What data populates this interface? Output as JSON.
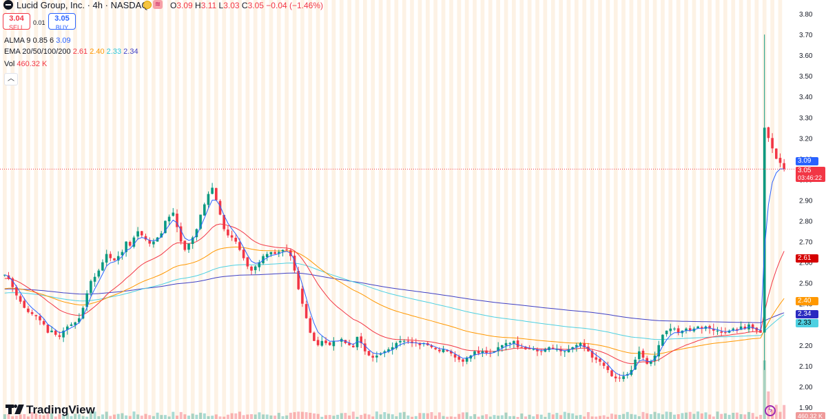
{
  "header": {
    "title": "Lucid Group, Inc. · 4h · NASDAQ",
    "ohlc": {
      "o_label": "O",
      "o": "3.09",
      "h_label": "H",
      "h": "3.11",
      "l_label": "L",
      "l": "3.03",
      "c_label": "C",
      "c": "3.05",
      "change": "−0.04 (−1.46%)"
    },
    "sell": {
      "price": "3.04",
      "label": "SELL"
    },
    "buy": {
      "price": "3.05",
      "label": "BUY"
    },
    "spread": "0.01",
    "indicators": {
      "alma": {
        "name": "ALMA 9 0.85 6",
        "value": "3.09"
      },
      "ema": {
        "name": "EMA 20/50/100/200",
        "v20": "2.61",
        "v50": "2.40",
        "v100": "2.33",
        "v200": "2.34"
      },
      "vol": {
        "name": "Vol",
        "value": "460.32 K"
      }
    }
  },
  "brand": "TradingView",
  "icons": {
    "sun": "sun-icon",
    "wave": "wave-icon",
    "collapse": "chevron-up-icon",
    "flash": "flash-icon"
  },
  "colors": {
    "up": "#089981",
    "down": "#f23645",
    "alma": "#2962ff",
    "ema20": "#f23645",
    "ema50": "#ff9800",
    "ema100": "#4dd0e1",
    "ema200": "#3f3fc4",
    "session": "#fce8cf"
  },
  "axis_badges": {
    "alma": "3.09",
    "last_price": "3.05",
    "countdown": "03:46:22",
    "ema20": "2.61",
    "ema50": "2.40",
    "ema200": "2.34",
    "ema100": "2.33",
    "vol": "460.32 K"
  },
  "chart_data": {
    "type": "candlestick",
    "title": "Lucid Group, Inc. · 4h · NASDAQ",
    "y_axis": {
      "ticks": [
        "3.80",
        "3.70",
        "3.60",
        "3.50",
        "3.40",
        "3.30",
        "3.20",
        "3.10",
        "3.00",
        "2.90",
        "2.80",
        "2.70",
        "2.60",
        "2.50",
        "2.40",
        "2.30",
        "2.20",
        "2.10",
        "2.00",
        "1.90"
      ],
      "range": [
        1.87,
        3.84
      ]
    },
    "last_price": 3.05,
    "close": [
      2.54,
      2.52,
      2.48,
      2.44,
      2.41,
      2.38,
      2.36,
      2.35,
      2.34,
      2.32,
      2.3,
      2.26,
      2.27,
      2.25,
      2.24,
      2.27,
      2.29,
      2.3,
      2.31,
      2.33,
      2.38,
      2.45,
      2.51,
      2.53,
      2.56,
      2.6,
      2.64,
      2.62,
      2.61,
      2.63,
      2.65,
      2.7,
      2.68,
      2.72,
      2.75,
      2.73,
      2.71,
      2.69,
      2.7,
      2.72,
      2.74,
      2.8,
      2.82,
      2.84,
      2.77,
      2.7,
      2.66,
      2.69,
      2.72,
      2.76,
      2.83,
      2.88,
      2.93,
      2.96,
      2.9,
      2.83,
      2.76,
      2.73,
      2.72,
      2.7,
      2.66,
      2.62,
      2.58,
      2.56,
      2.58,
      2.6,
      2.63,
      2.64,
      2.65,
      2.64,
      2.65,
      2.66,
      2.66,
      2.63,
      2.56,
      2.47,
      2.4,
      2.33,
      2.26,
      2.22,
      2.2,
      2.22,
      2.21,
      2.2,
      2.22,
      2.22,
      2.23,
      2.21,
      2.2,
      2.19,
      2.24,
      2.21,
      2.17,
      2.15,
      2.14,
      2.15,
      2.16,
      2.17,
      2.18,
      2.19,
      2.21,
      2.22,
      2.22,
      2.22,
      2.21,
      2.21,
      2.2,
      2.21,
      2.2,
      2.19,
      2.18,
      2.17,
      2.18,
      2.17,
      2.16,
      2.14,
      2.13,
      2.12,
      2.14,
      2.15,
      2.17,
      2.16,
      2.17,
      2.16,
      2.16,
      2.17,
      2.19,
      2.2,
      2.21,
      2.21,
      2.22,
      2.19,
      2.19,
      2.18,
      2.18,
      2.18,
      2.17,
      2.17,
      2.18,
      2.19,
      2.18,
      2.18,
      2.17,
      2.17,
      2.18,
      2.19,
      2.2,
      2.21,
      2.19,
      2.17,
      2.14,
      2.13,
      2.12,
      2.1,
      2.08,
      2.05,
      2.04,
      2.04,
      2.05,
      2.06,
      2.08,
      2.13,
      2.17,
      2.14,
      2.11,
      2.12,
      2.15,
      2.2,
      2.25,
      2.27,
      2.28,
      2.28,
      2.26,
      2.27,
      2.28,
      2.27,
      2.28,
      2.29,
      2.28,
      2.29,
      2.28,
      2.27,
      2.27,
      2.26,
      2.26,
      2.27,
      2.28,
      2.27,
      2.29,
      2.28,
      2.3,
      2.28,
      2.27,
      2.26,
      3.25,
      3.2,
      3.15,
      3.1,
      3.08,
      3.05
    ],
    "ema": {
      "20": 2.61,
      "50": 2.4,
      "100": 2.33,
      "200": 2.34
    },
    "alma": 3.09,
    "spike_high": 3.7,
    "volume_last": "460.32 K",
    "grid": false,
    "legend": "top-left"
  }
}
